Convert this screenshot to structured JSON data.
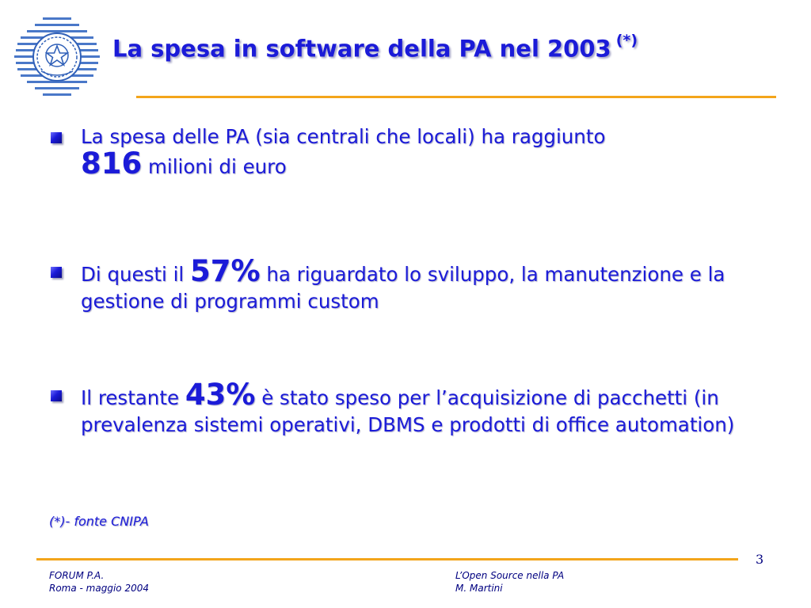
{
  "header": {
    "title": "La spesa in software della PA nel 2003",
    "title_note": "(*)"
  },
  "bullets": [
    {
      "pre": "La spesa delle PA (sia centrali che locali) ha raggiunto",
      "highlight": "816",
      "post": "milioni di euro"
    },
    {
      "pre": "Di questi il",
      "highlight": "57%",
      "post": "ha riguardato lo sviluppo, la manutenzione e la gestione di programmi custom"
    },
    {
      "pre": "Il restante",
      "highlight": "43%",
      "post": "è stato speso per l’acquisizione di pacchetti (in prevalenza sistemi operativi, DBMS e prodotti di office automation)"
    }
  ],
  "source_note": "(*)- fonte CNIPA",
  "footer": {
    "page_number": "3",
    "left_line1": "FORUM P.A.",
    "left_line2": "Roma - maggio 2004",
    "right_line1": "L’Open Source nella PA",
    "right_line2": "M. Martini"
  },
  "colors": {
    "title_blue": "#1b1bd8",
    "rule_orange": "#f3a51b",
    "footer_navy": "#000080"
  },
  "icons": {
    "logo": "italian-republic-emblem-icon",
    "bullet": "square-bullet-icon"
  }
}
